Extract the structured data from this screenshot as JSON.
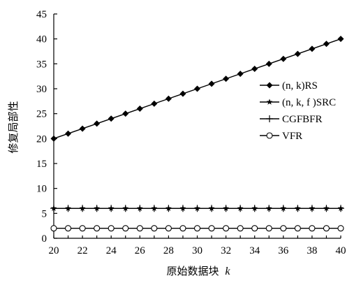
{
  "chart_data": {
    "type": "line",
    "xlabel": "原始数据块",
    "xlabel_var": "k",
    "ylabel": "修复局部性",
    "xlim": [
      20,
      40
    ],
    "ylim": [
      0,
      45
    ],
    "xticks": [
      20,
      22,
      24,
      26,
      28,
      30,
      32,
      34,
      36,
      38,
      40
    ],
    "yticks": [
      0,
      5,
      10,
      15,
      20,
      25,
      30,
      35,
      40,
      45
    ],
    "grid": false,
    "legend_position": "right",
    "x": [
      20,
      21,
      22,
      23,
      24,
      25,
      26,
      27,
      28,
      29,
      30,
      31,
      32,
      33,
      34,
      35,
      36,
      37,
      38,
      39,
      40
    ],
    "series": [
      {
        "name": "(n, k)RS",
        "marker": "diamond",
        "values": [
          20,
          21,
          22,
          23,
          24,
          25,
          26,
          27,
          28,
          29,
          30,
          31,
          32,
          33,
          34,
          35,
          36,
          37,
          38,
          39,
          40
        ]
      },
      {
        "name": "(n, k, f )SRC",
        "marker": "star",
        "values": [
          6,
          6,
          6,
          6,
          6,
          6,
          6,
          6,
          6,
          6,
          6,
          6,
          6,
          6,
          6,
          6,
          6,
          6,
          6,
          6,
          6
        ]
      },
      {
        "name": "CGFBFR",
        "marker": "plus",
        "values": [
          6,
          6,
          6,
          6,
          6,
          6,
          6,
          6,
          6,
          6,
          6,
          6,
          6,
          6,
          6,
          6,
          6,
          6,
          6,
          6,
          6
        ]
      },
      {
        "name": "VFR",
        "marker": "circle",
        "values": [
          2,
          2,
          2,
          2,
          2,
          2,
          2,
          2,
          2,
          2,
          2,
          2,
          2,
          2,
          2,
          2,
          2,
          2,
          2,
          2,
          2
        ]
      }
    ]
  }
}
